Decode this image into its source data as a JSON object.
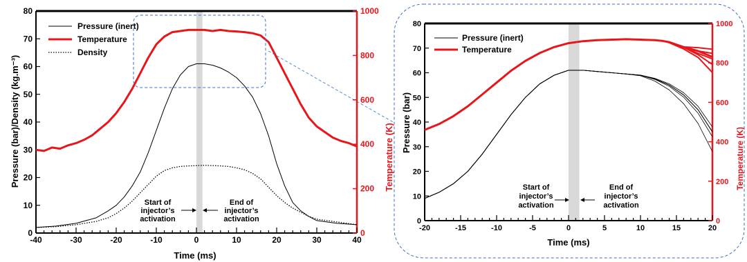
{
  "chart_data": [
    {
      "type": "line",
      "title": "",
      "xlabel": "Time (ms)",
      "ylabel": "Pressure (bar)/Density (kg.m⁻³)",
      "y2label": "Temperature (K)",
      "xlim": [
        -40,
        40
      ],
      "ylim": [
        0,
        80
      ],
      "y2lim": [
        0,
        1000
      ],
      "xticks": [
        "-40",
        "-30",
        "-20",
        "-10",
        "0",
        "10",
        "20",
        "30",
        "40"
      ],
      "yticks": [
        "0",
        "10",
        "20",
        "30",
        "40",
        "50",
        "60",
        "70",
        "80"
      ],
      "y2ticks": [
        "0",
        "200",
        "400",
        "600",
        "800",
        "1000"
      ],
      "legend_position": "top-left",
      "annotations": [
        {
          "id": "start",
          "lines": [
            "Start of",
            "injector’s",
            "activation"
          ]
        },
        {
          "id": "end",
          "lines": [
            "End of",
            "injector’s",
            "activation"
          ]
        }
      ],
      "shaded_band_x": [
        0,
        1.5
      ],
      "series": [
        {
          "name": "Pressure (inert)",
          "axis": "left",
          "style": "solid-thin",
          "color": "#000000",
          "x": [
            -40,
            -35,
            -30,
            -25,
            -22,
            -20,
            -18,
            -16,
            -14,
            -12,
            -10,
            -8,
            -6,
            -4,
            -2,
            0,
            2,
            4,
            6,
            8,
            10,
            12,
            14,
            16,
            18,
            20,
            22,
            24,
            26,
            28,
            30,
            35,
            40
          ],
          "y": [
            2,
            2.5,
            3.5,
            5.5,
            8,
            10,
            13,
            17,
            22,
            29,
            37,
            45,
            52,
            57,
            60,
            61,
            61,
            60.5,
            59.5,
            58,
            56,
            53,
            49,
            43,
            35,
            25,
            17,
            11,
            8,
            6,
            4.5,
            3.5,
            3
          ]
        },
        {
          "name": "Temperature",
          "axis": "right",
          "style": "solid-thick",
          "color": "#e8161b",
          "x": [
            -40,
            -38,
            -36,
            -34,
            -32,
            -30,
            -28,
            -26,
            -24,
            -22,
            -20,
            -18,
            -16,
            -14,
            -12,
            -10,
            -8,
            -6,
            -4,
            -2,
            0,
            2,
            4,
            6,
            8,
            10,
            12,
            14,
            16,
            18,
            20,
            22,
            24,
            26,
            28,
            30,
            32,
            34,
            36,
            38,
            40
          ],
          "y": [
            375,
            370,
            385,
            380,
            395,
            405,
            420,
            440,
            470,
            500,
            540,
            590,
            650,
            720,
            790,
            850,
            885,
            905,
            910,
            915,
            915,
            915,
            910,
            915,
            910,
            908,
            905,
            900,
            890,
            860,
            790,
            720,
            650,
            580,
            520,
            480,
            455,
            430,
            415,
            405,
            390
          ]
        },
        {
          "name": "Density",
          "axis": "left",
          "style": "dotted",
          "color": "#000000",
          "x": [
            -40,
            -35,
            -30,
            -25,
            -22,
            -20,
            -18,
            -16,
            -14,
            -12,
            -10,
            -8,
            -6,
            -4,
            -2,
            0,
            2,
            4,
            6,
            8,
            10,
            12,
            14,
            16,
            18,
            20,
            22,
            24,
            26,
            28,
            30,
            35,
            40
          ],
          "y": [
            2,
            2.3,
            3,
            4.2,
            5.5,
            7,
            9,
            11.5,
            14.5,
            17.5,
            20.5,
            22.5,
            23.5,
            24,
            24.2,
            24.3,
            24.4,
            24.3,
            24.2,
            24,
            23.5,
            22.8,
            21.5,
            19.5,
            16.5,
            13.5,
            11,
            9,
            7.5,
            6,
            5,
            4,
            3
          ]
        }
      ]
    },
    {
      "type": "line",
      "title": "",
      "xlabel": "Time (ms)",
      "ylabel": "Pressure (bar)",
      "y2label": "Temperature (K)",
      "xlim": [
        -20,
        20
      ],
      "ylim": [
        0,
        80
      ],
      "y2lim": [
        0,
        1000
      ],
      "xticks": [
        "-20",
        "-15",
        "-10",
        "-5",
        "0",
        "5",
        "10",
        "15",
        "20"
      ],
      "yticks": [
        "0",
        "10",
        "20",
        "30",
        "40",
        "50",
        "60",
        "70",
        "80"
      ],
      "y2ticks": [
        "0",
        "200",
        "400",
        "600",
        "800",
        "1000"
      ],
      "legend_position": "top-left",
      "annotations": [
        {
          "id": "start",
          "lines": [
            "Start of",
            "injector’s",
            "activation"
          ]
        },
        {
          "id": "end",
          "lines": [
            "End of",
            "injector’s",
            "activation"
          ]
        }
      ],
      "shaded_band_x": [
        0,
        1.5
      ],
      "series": [
        {
          "name": "Pressure (inert)",
          "axis": "left",
          "style": "solid-multi",
          "color": "#000000",
          "x": [
            -20,
            -18,
            -16,
            -14,
            -12,
            -10,
            -8,
            -6,
            -4,
            -2,
            0,
            2,
            4,
            6,
            8,
            10,
            12,
            14,
            16,
            18,
            20
          ],
          "y": [
            9,
            11.5,
            15,
            20,
            27,
            35,
            43,
            50,
            55.5,
            59,
            61,
            61,
            60.5,
            60,
            59.5,
            59,
            57.5,
            55,
            51,
            45,
            36
          ],
          "variants_end": [
            28,
            34,
            36,
            38
          ]
        },
        {
          "name": "Temperature",
          "axis": "right",
          "style": "solid-thick-multi",
          "color": "#e8161b",
          "x": [
            -20,
            -18,
            -16,
            -14,
            -12,
            -10,
            -8,
            -6,
            -4,
            -2,
            0,
            2,
            4,
            6,
            8,
            10,
            12,
            13,
            14,
            16,
            18,
            20
          ],
          "y": [
            460,
            490,
            530,
            580,
            640,
            700,
            760,
            810,
            850,
            880,
            900,
            910,
            915,
            918,
            920,
            918,
            915,
            912,
            905,
            880,
            860,
            830
          ],
          "variants_end": [
            760,
            800,
            820,
            840,
            860
          ]
        }
      ]
    }
  ]
}
